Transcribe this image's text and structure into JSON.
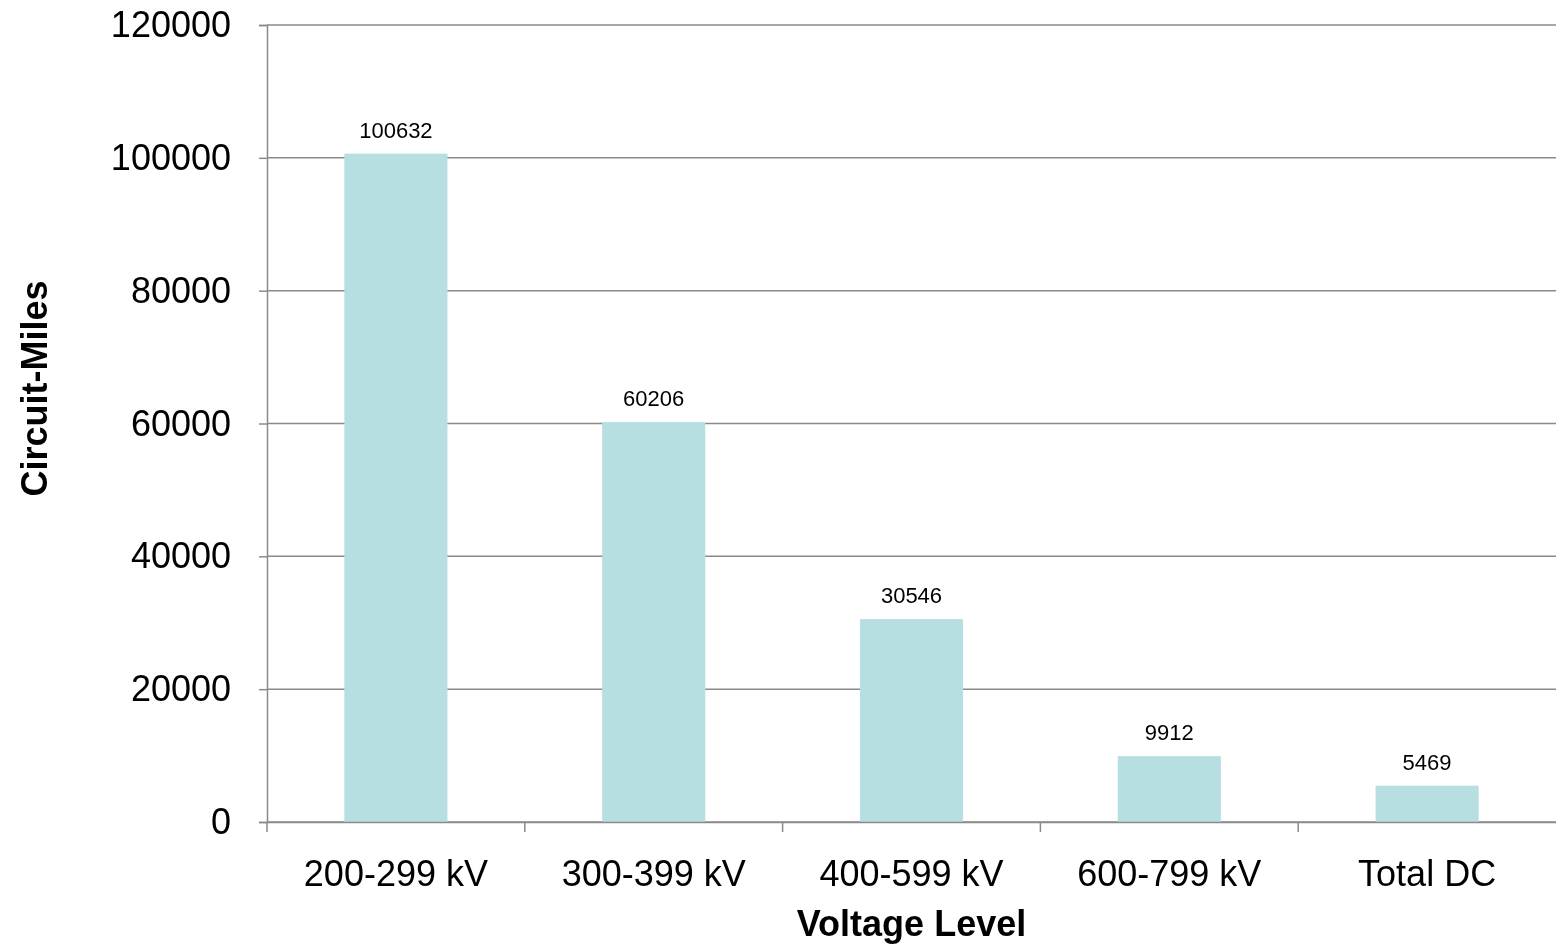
{
  "chart_data": {
    "type": "bar",
    "xlabel": "Voltage Level",
    "ylabel": "Circuit-Miles",
    "categories": [
      "200-299 kV",
      "300-399 kV",
      "400-599 kV",
      "600-799 kV",
      "Total DC"
    ],
    "values": [
      100632,
      60206,
      30546,
      9912,
      5469
    ],
    "color": "#b7dfe2",
    "ylim": [
      0,
      120000
    ],
    "yticks": [
      0,
      20000,
      40000,
      60000,
      80000,
      100000,
      120000
    ],
    "grid": "y",
    "data_labels": true
  }
}
